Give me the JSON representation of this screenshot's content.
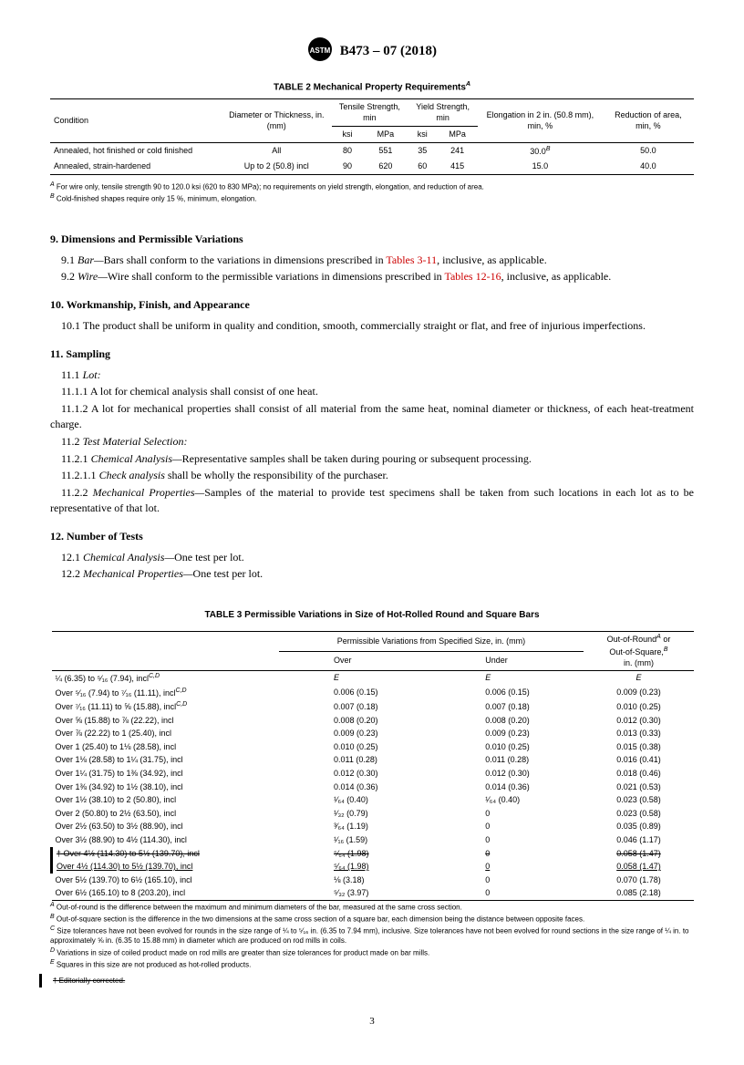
{
  "header": {
    "title": "B473 – 07 (2018)"
  },
  "table2": {
    "title": "TABLE 2 Mechanical Property Requirements",
    "title_sup": "A",
    "col_condition": "Condition",
    "col_diameter": "Diameter or Thickness, in. (mm)",
    "col_tensile": "Tensile Strength, min",
    "col_yield": "Yield Strength, min",
    "col_elong": "Elongation in 2 in. (50.8 mm), min, %",
    "col_reduct": "Reduction of area, min, %",
    "sub_ksi": "ksi",
    "sub_mpa": "MPa",
    "rows": [
      {
        "cond": "Annealed, hot finished or cold finished",
        "diam": "All",
        "t_ksi": "80",
        "t_mpa": "551",
        "y_ksi": "35",
        "y_mpa": "241",
        "elong": "30.0",
        "elong_sup": "B",
        "reduct": "50.0"
      },
      {
        "cond": "Annealed, strain-hardened",
        "diam": "Up to 2 (50.8) incl",
        "t_ksi": "90",
        "t_mpa": "620",
        "y_ksi": "60",
        "y_mpa": "415",
        "elong": "15.0",
        "elong_sup": "",
        "reduct": "40.0"
      }
    ],
    "footnotes": [
      {
        "sup": "A",
        "text": " For wire only, tensile strength 90 to 120.0 ksi (620 to 830 MPa); no requirements on yield strength, elongation, and reduction of area."
      },
      {
        "sup": "B",
        "text": " Cold-finished shapes require only 15 %, minimum, elongation."
      }
    ]
  },
  "sections": {
    "s9": {
      "heading": "9. Dimensions and Permissible Variations",
      "p1_num": "9.1 ",
      "p1_italic": "Bar—",
      "p1_text": "Bars shall conform to the variations in dimensions prescribed in ",
      "p1_link": "Tables 3-11",
      "p1_tail": ", inclusive, as applicable.",
      "p2_num": "9.2 ",
      "p2_italic": "Wire—",
      "p2_text": "Wire shall conform to the permissible variations in dimensions prescribed in ",
      "p2_link": "Tables 12-16",
      "p2_tail": ", inclusive, as applicable."
    },
    "s10": {
      "heading": "10. Workmanship, Finish, and Appearance",
      "p1": "10.1 The product shall be uniform in quality and condition, smooth, commercially straight or flat, and free of injurious imperfections."
    },
    "s11": {
      "heading": "11. Sampling",
      "p0_num": "11.1 ",
      "p0_italic": "Lot:",
      "p1": "11.1.1 A lot for chemical analysis shall consist of one heat.",
      "p2": "11.1.2 A lot for mechanical properties shall consist of all material from the same heat, nominal diameter or thickness, of each heat-treatment charge.",
      "p3_num": "11.2 ",
      "p3_italic": "Test Material Selection:",
      "p4_num": "11.2.1 ",
      "p4_italic": "Chemical Analysis—",
      "p4_text": "Representative samples shall be taken during pouring or subsequent processing.",
      "p5_num": "11.2.1.1 ",
      "p5_italic": "Check analysis",
      "p5_text": " shall be wholly the responsibility of the purchaser.",
      "p6_num": "11.2.2 ",
      "p6_italic": "Mechanical Properties—",
      "p6_text": "Samples of the material to provide test specimens shall be taken from such locations in each lot as to be representative of that lot."
    },
    "s12": {
      "heading": "12. Number of Tests",
      "p1_num": "12.1 ",
      "p1_italic": "Chemical Analysis—",
      "p1_text": "One test per lot.",
      "p2_num": "12.2 ",
      "p2_italic": "Mechanical Properties—",
      "p2_text": "One test per lot."
    }
  },
  "table3": {
    "title": "TABLE 3 Permissible Variations in Size of Hot-Rolled Round and Square Bars",
    "hdr_main": "Permissible Variations from Specified Size, in. (mm)",
    "hdr_over": "Over",
    "hdr_under": "Under",
    "hdr_oor1": "Out-of-Round",
    "hdr_oor1_sup": "A",
    "hdr_oor_or": " or",
    "hdr_oor2": "Out-of-Square,",
    "hdr_oor2_sup": "B",
    "hdr_oor3": "in. (mm)",
    "rows": [
      {
        "size": "¼ (6.35) to ⁵⁄₁₆ (7.94), incl",
        "size_sup": "C,D",
        "over": "E",
        "over_italic": true,
        "under": "E",
        "under_italic": true,
        "oor": "E",
        "oor_italic": true
      },
      {
        "size": "Over ⁵⁄₁₆ (7.94) to ⁷⁄₁₆ (11.11), incl",
        "size_sup": "C,D",
        "over": "0.006 (0.15)",
        "under": "0.006 (0.15)",
        "oor": "0.009 (0.23)"
      },
      {
        "size": "Over ⁷⁄₁₆ (11.11) to ⅝ (15.88), incl",
        "size_sup": "C,D",
        "over": "0.007 (0.18)",
        "under": "0.007 (0.18)",
        "oor": "0.010 (0.25)"
      },
      {
        "size": "Over ⅝ (15.88) to ⅞ (22.22), incl",
        "size_sup": "",
        "over": "0.008 (0.20)",
        "under": "0.008 (0.20)",
        "oor": "0.012 (0.30)"
      },
      {
        "size": "Over ⅞ (22.22) to 1 (25.40), incl",
        "size_sup": "",
        "over": "0.009 (0.23)",
        "under": "0.009 (0.23)",
        "oor": "0.013 (0.33)"
      },
      {
        "size": "Over 1 (25.40) to 1⅛ (28.58), incl",
        "size_sup": "",
        "over": "0.010 (0.25)",
        "under": "0.010 (0.25)",
        "oor": "0.015 (0.38)"
      },
      {
        "size": "Over 1⅛ (28.58) to 1¼ (31.75), incl",
        "size_sup": "",
        "over": "0.011 (0.28)",
        "under": "0.011 (0.28)",
        "oor": "0.016 (0.41)"
      },
      {
        "size": "Over 1¼ (31.75) to 1⅜ (34.92), incl",
        "size_sup": "",
        "over": "0.012 (0.30)",
        "under": "0.012 (0.30)",
        "oor": "0.018 (0.46)"
      },
      {
        "size": "Over 1⅜ (34.92) to 1½ (38.10), incl",
        "size_sup": "",
        "over": "0.014 (0.36)",
        "under": "0.014 (0.36)",
        "oor": "0.021 (0.53)"
      },
      {
        "size": "Over 1½ (38.10) to 2 (50.80), incl",
        "size_sup": "",
        "over": "¹⁄₆₄ (0.40)",
        "under": "¹⁄₆₄ (0.40)",
        "oor": "0.023 (0.58)"
      },
      {
        "size": "Over 2 (50.80) to 2½ (63.50), incl",
        "size_sup": "",
        "over": "¹⁄₃₂ (0.79)",
        "under": "0",
        "oor": "0.023 (0.58)"
      },
      {
        "size": "Over 2½ (63.50) to 3½ (88.90), incl",
        "size_sup": "",
        "over": "³⁄₆₄ (1.19)",
        "under": "0",
        "oor": "0.035 (0.89)"
      },
      {
        "size": "Over 3½ (88.90) to 4½ (114.30), incl",
        "size_sup": "",
        "over": "¹⁄₁₆ (1.59)",
        "under": "0",
        "oor": "0.046 (1.17)"
      },
      {
        "size": "† Over 4½ (114.30) to 5½ (139.70), incl",
        "size_sup": "",
        "over": "⁵⁄₆₄ (1.98)",
        "under": "0",
        "oor": "0.058 (1.47)",
        "strike": true,
        "changebar": true
      },
      {
        "size": "Over 4½ (114.30) to 5½ (139.70), incl",
        "size_sup": "",
        "over": "⁵⁄₆₄ (1.98)",
        "under": "0",
        "oor": "0.058 (1.47)",
        "under_line": true,
        "changebar": true
      },
      {
        "size": "Over 5½ (139.70) to 6½ (165.10), incl",
        "size_sup": "",
        "over": "⅛ (3.18)",
        "under": "0",
        "oor": "0.070 (1.78)"
      },
      {
        "size": "Over 6½ (165.10) to 8 (203.20), incl",
        "size_sup": "",
        "over": "⁵⁄₃₂ (3.97)",
        "under": "0",
        "oor": "0.085 (2.18)"
      }
    ],
    "footnotes": [
      {
        "sup": "A",
        "text": " Out-of-round is the difference between the maximum and minimum diameters of the bar, measured at the same cross section."
      },
      {
        "sup": "B",
        "text": " Out-of-square section is the difference in the two dimensions at the same cross section of a square bar, each dimension being the distance between opposite faces."
      },
      {
        "sup": "C",
        "text": " Size tolerances have not been evolved for rounds in the size range of ¼ to ⁵⁄₁₆ in. (6.35 to 7.94 mm), inclusive. Size tolerances have not been evolved for round sections in the size range of ¼ in. to approximately ⅝ in. (6.35 to 15.88 mm) in diameter which are produced on rod mills in coils."
      },
      {
        "sup": "D",
        "text": " Variations in size of coiled product made on rod mills are greater than size tolerances for product made on bar mills."
      },
      {
        "sup": "E",
        "text": " Squares in this size are not produced as hot-rolled products."
      }
    ],
    "editorial": "† Editorially corrected."
  },
  "page_number": "3"
}
